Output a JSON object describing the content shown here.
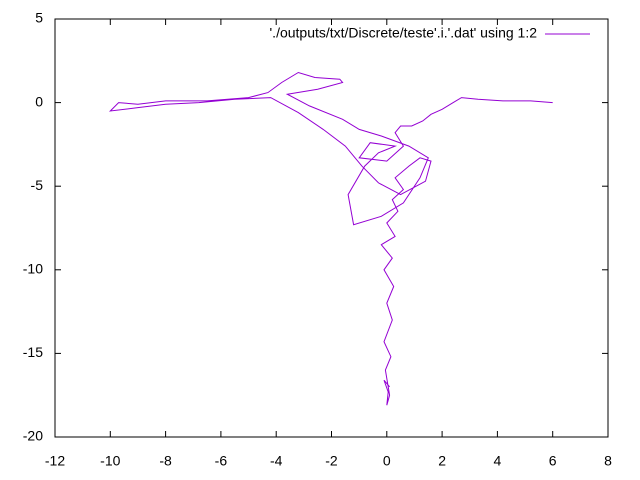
{
  "chart_data": {
    "type": "line",
    "x": [
      0,
      0.1,
      -0.1,
      0.05,
      0,
      0.1,
      -0.05,
      0.15,
      -0.1,
      0.2,
      0.0,
      0.25,
      -0.1,
      0.2,
      -0.2,
      0.3,
      0.0,
      0.4,
      0.2,
      0.6,
      0.3,
      0.8,
      1.2,
      1.6,
      1.4,
      0.5,
      -0.3,
      -0.9,
      -1.5,
      -2.3,
      -3.2,
      -4.2,
      -5.5,
      -6.8,
      -8.0,
      -9.0,
      -10.0,
      -9.7,
      -9.0,
      -8.0,
      -6.5,
      -5.0,
      -4.3,
      -3.8,
      -3.2,
      -2.6,
      -1.7,
      -1.6,
      -2.5,
      -3.6,
      -2.8,
      -1.6,
      -1.0,
      -0.2,
      0.8,
      1.5,
      1.2,
      0.6,
      -0.2,
      -1.2,
      -1.4,
      -0.8,
      -0.3,
      0.3,
      -0.6,
      -1.0,
      0.0,
      0.6,
      0.3,
      0.5,
      0.9,
      1.3,
      1.6,
      2.0,
      2.4,
      2.7,
      3.3,
      4.2,
      5.2,
      6.0
    ],
    "series": [
      {
        "name": "'./outputs/txt/Discrete/teste'.i.'.dat' using 1:2",
        "color": "#9400d3",
        "values": [
          -16.8,
          -17.0,
          -16.6,
          -17.3,
          -18.1,
          -17.5,
          -16.0,
          -15.2,
          -14.3,
          -13.0,
          -12.0,
          -11.0,
          -10.0,
          -9.3,
          -8.5,
          -8.0,
          -7.2,
          -6.5,
          -5.8,
          -5.2,
          -4.5,
          -3.8,
          -3.3,
          -3.5,
          -4.7,
          -5.5,
          -4.8,
          -3.8,
          -2.6,
          -1.6,
          -0.6,
          0.3,
          0.2,
          0.0,
          -0.1,
          -0.3,
          -0.5,
          0.0,
          -0.1,
          0.1,
          0.1,
          0.3,
          0.6,
          1.2,
          1.8,
          1.5,
          1.4,
          1.2,
          0.8,
          0.5,
          -0.2,
          -1.0,
          -1.6,
          -2.0,
          -2.6,
          -3.3,
          -4.5,
          -6.0,
          -6.8,
          -7.3,
          -5.5,
          -3.8,
          -3.0,
          -2.6,
          -2.4,
          -3.3,
          -3.5,
          -2.6,
          -1.8,
          -1.4,
          -1.4,
          -1.1,
          -0.7,
          -0.4,
          0.0,
          0.3,
          0.2,
          0.1,
          0.1,
          0.0
        ]
      }
    ],
    "xlim": [
      -12,
      8
    ],
    "xticks": [
      -12,
      -10,
      -8,
      -6,
      -4,
      -2,
      0,
      2,
      4,
      6,
      8
    ],
    "ylim": [
      -20,
      5
    ],
    "yticks": [
      -20,
      -15,
      -10,
      -5,
      0,
      5
    ],
    "legend": "top-right"
  }
}
